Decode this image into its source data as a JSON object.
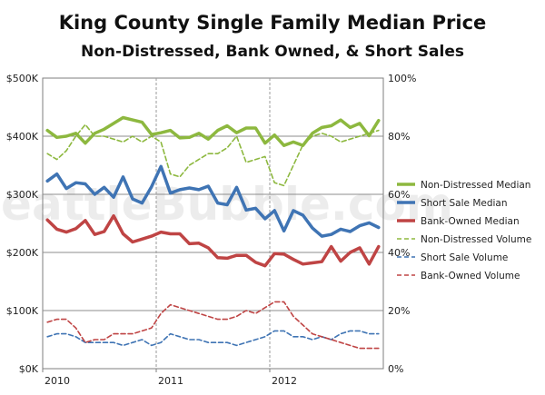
{
  "title": "King County Single Family Median Price",
  "subtitle": "Non-Distressed, Bank Owned, & Short Sales",
  "watermark": "SeattleBubble.com",
  "chart_data": {
    "type": "line",
    "x_start_label": "2010",
    "x_ticks": [
      {
        "index": 0,
        "label": "2010"
      },
      {
        "index": 12,
        "label": "2011"
      },
      {
        "index": 24,
        "label": "2012"
      }
    ],
    "x_count": 36,
    "y_left": {
      "range": [
        0,
        500000
      ],
      "ticks": [
        {
          "value": 0,
          "label": "$0K"
        },
        {
          "value": 100000,
          "label": "$100K"
        },
        {
          "value": 200000,
          "label": "$200K"
        },
        {
          "value": 300000,
          "label": "$300K"
        },
        {
          "value": 400000,
          "label": "$400K"
        },
        {
          "value": 500000,
          "label": "$500K"
        }
      ]
    },
    "y_right": {
      "range": [
        0,
        100
      ],
      "ticks": [
        {
          "value": 0,
          "label": "0%"
        },
        {
          "value": 20,
          "label": "20%"
        },
        {
          "value": 40,
          "label": "40%"
        },
        {
          "value": 60,
          "label": "60%"
        },
        {
          "value": 80,
          "label": "80%"
        },
        {
          "value": 100,
          "label": "100%"
        }
      ]
    },
    "grid": true,
    "legend_position": "right",
    "series": [
      {
        "name": "Non-Distressed Median",
        "axis": "left",
        "style": "solid",
        "color": "#8db83f",
        "values": [
          410000,
          398000,
          400000,
          405000,
          388000,
          405000,
          412000,
          422000,
          432000,
          428000,
          424000,
          403000,
          406000,
          410000,
          397000,
          398000,
          405000,
          395000,
          410000,
          418000,
          406000,
          414000,
          414000,
          388000,
          402000,
          384000,
          390000,
          384000,
          405000,
          415000,
          418000,
          428000,
          415000,
          422000,
          401000,
          427000
        ]
      },
      {
        "name": "Short Sale Median",
        "axis": "left",
        "style": "solid",
        "color": "#3f74b4",
        "values": [
          323000,
          335000,
          310000,
          320000,
          318000,
          300000,
          312000,
          295000,
          330000,
          292000,
          285000,
          313000,
          348000,
          302000,
          308000,
          311000,
          308000,
          314000,
          285000,
          282000,
          312000,
          273000,
          276000,
          258000,
          272000,
          237000,
          272000,
          264000,
          242000,
          228000,
          231000,
          240000,
          236000,
          246000,
          251000,
          243000
        ]
      },
      {
        "name": "Bank-Owned Median",
        "axis": "left",
        "style": "solid",
        "color": "#bf4444",
        "values": [
          256000,
          240000,
          235000,
          241000,
          255000,
          231000,
          236000,
          263000,
          232000,
          218000,
          223000,
          228000,
          235000,
          232000,
          232000,
          215000,
          216000,
          208000,
          191000,
          190000,
          195000,
          195000,
          183000,
          177000,
          198000,
          197000,
          188000,
          180000,
          182000,
          184000,
          210000,
          185000,
          200000,
          208000,
          180000,
          210000
        ]
      },
      {
        "name": "Non-Distressed Volume",
        "axis": "right",
        "style": "dashed",
        "color": "#8db83f",
        "values": [
          74,
          72,
          75,
          80,
          84,
          80,
          80,
          79,
          78,
          80,
          78,
          80,
          78,
          67,
          66,
          70,
          72,
          74,
          74,
          76,
          80,
          71,
          72,
          73,
          64,
          63,
          70,
          77,
          80,
          81,
          80,
          78,
          79,
          80,
          81,
          82
        ]
      },
      {
        "name": "Short Sale Volume",
        "axis": "right",
        "style": "dashed",
        "color": "#3f74b4",
        "values": [
          11,
          12,
          12,
          11,
          9,
          9,
          9,
          9,
          8,
          9,
          10,
          8,
          9,
          12,
          11,
          10,
          10,
          9,
          9,
          9,
          8,
          9,
          10,
          11,
          13,
          13,
          11,
          11,
          10,
          11,
          10,
          12,
          13,
          13,
          12,
          12
        ]
      },
      {
        "name": "Bank-Owned Volume",
        "axis": "right",
        "style": "dashed",
        "color": "#bf4444",
        "values": [
          16,
          17,
          17,
          14,
          9,
          10,
          10,
          12,
          12,
          12,
          13,
          14,
          19,
          22,
          21,
          20,
          19,
          18,
          17,
          17,
          18,
          20,
          19,
          21,
          23,
          23,
          18,
          15,
          12,
          11,
          10,
          9,
          8,
          7,
          7,
          7
        ]
      }
    ]
  },
  "legend": [
    {
      "label": "Non-Distressed Median"
    },
    {
      "label": "Short Sale Median"
    },
    {
      "label": "Bank-Owned Median"
    },
    {
      "label": "Non-Distressed Volume"
    },
    {
      "label": "Short Sale Volume"
    },
    {
      "label": "Bank-Owned Volume"
    }
  ]
}
